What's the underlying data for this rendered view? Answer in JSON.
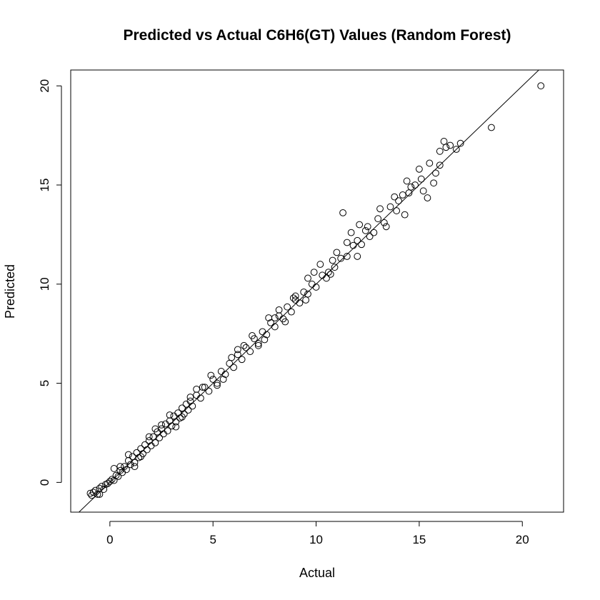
{
  "chart_data": {
    "type": "scatter",
    "title": "Predicted vs Actual C6H6(GT) Values (Random Forest)",
    "xlabel": "Actual",
    "ylabel": "Predicted",
    "xlim": [
      -1.9,
      22.0
    ],
    "ylim": [
      -1.5,
      20.8
    ],
    "xticks": [
      0,
      5,
      10,
      15,
      20
    ],
    "yticks": [
      0,
      5,
      10,
      15,
      20
    ],
    "xtick_labels": [
      "0",
      "5",
      "10",
      "15",
      "20"
    ],
    "ytick_labels": [
      "0",
      "5",
      "10",
      "15",
      "20"
    ],
    "reference_line": {
      "intercept": 0,
      "slope": 1
    },
    "grid": false,
    "legend": "none",
    "marker": "open-circle",
    "colors": {
      "points": "#000000",
      "line": "#000000",
      "background": "#ffffff"
    },
    "series": [
      {
        "points": [
          [
            -0.95,
            -0.55
          ],
          [
            -0.88,
            -0.65
          ],
          [
            -0.8,
            -0.5
          ],
          [
            -0.7,
            -0.4
          ],
          [
            -0.6,
            -0.6
          ],
          [
            -0.5,
            -0.3
          ],
          [
            -0.4,
            -0.2
          ],
          [
            -0.3,
            -0.35
          ],
          [
            -0.2,
            -0.1
          ],
          [
            -0.1,
            -0.05
          ],
          [
            0.0,
            0.05
          ],
          [
            0.1,
            0.15
          ],
          [
            0.2,
            0.1
          ],
          [
            0.3,
            0.35
          ],
          [
            0.4,
            0.3
          ],
          [
            0.5,
            0.6
          ],
          [
            0.6,
            0.5
          ],
          [
            0.7,
            0.8
          ],
          [
            0.8,
            0.65
          ],
          [
            0.9,
            1.1
          ],
          [
            1.0,
            0.9
          ],
          [
            1.1,
            1.3
          ],
          [
            1.2,
            1.0
          ],
          [
            1.3,
            1.5
          ],
          [
            1.4,
            1.25
          ],
          [
            1.5,
            1.7
          ],
          [
            1.6,
            1.45
          ],
          [
            1.7,
            1.9
          ],
          [
            1.8,
            1.65
          ],
          [
            1.9,
            2.1
          ],
          [
            2.0,
            1.85
          ],
          [
            2.1,
            2.3
          ],
          [
            2.2,
            2.0
          ],
          [
            2.3,
            2.55
          ],
          [
            2.4,
            2.25
          ],
          [
            2.5,
            2.7
          ],
          [
            2.6,
            2.45
          ],
          [
            2.7,
            2.95
          ],
          [
            2.8,
            2.6
          ],
          [
            2.9,
            3.1
          ],
          [
            3.0,
            2.85
          ],
          [
            3.1,
            3.35
          ],
          [
            3.2,
            3.05
          ],
          [
            3.3,
            3.5
          ],
          [
            3.4,
            3.25
          ],
          [
            3.5,
            3.75
          ],
          [
            3.6,
            3.45
          ],
          [
            3.7,
            3.95
          ],
          [
            3.8,
            3.65
          ],
          [
            3.9,
            4.1
          ],
          [
            4.0,
            3.85
          ],
          [
            4.2,
            4.4
          ],
          [
            4.4,
            4.25
          ],
          [
            4.6,
            4.8
          ],
          [
            4.8,
            4.6
          ],
          [
            5.0,
            5.2
          ],
          [
            5.2,
            5.0
          ],
          [
            5.4,
            5.6
          ],
          [
            5.6,
            5.45
          ],
          [
            5.8,
            6.0
          ],
          [
            6.0,
            5.8
          ],
          [
            6.2,
            6.45
          ],
          [
            6.4,
            6.2
          ],
          [
            6.6,
            6.8
          ],
          [
            6.8,
            6.6
          ],
          [
            7.0,
            7.25
          ],
          [
            7.2,
            7.0
          ],
          [
            7.4,
            7.6
          ],
          [
            7.6,
            7.45
          ],
          [
            7.8,
            8.05
          ],
          [
            8.0,
            7.85
          ],
          [
            8.2,
            8.4
          ],
          [
            8.4,
            8.25
          ],
          [
            8.6,
            8.85
          ],
          [
            8.8,
            8.6
          ],
          [
            9.0,
            9.2
          ],
          [
            9.2,
            9.05
          ],
          [
            9.4,
            9.6
          ],
          [
            9.6,
            9.5
          ],
          [
            9.8,
            10.0
          ],
          [
            10.0,
            9.85
          ],
          [
            10.3,
            10.45
          ],
          [
            10.6,
            10.6
          ],
          [
            10.9,
            10.85
          ],
          [
            11.2,
            11.3
          ],
          [
            11.5,
            11.4
          ],
          [
            11.8,
            11.95
          ],
          [
            12.0,
            12.2
          ],
          [
            12.2,
            12.0
          ],
          [
            12.5,
            12.9
          ],
          [
            12.8,
            12.6
          ],
          [
            13.0,
            13.3
          ],
          [
            13.3,
            13.1
          ],
          [
            13.6,
            13.9
          ],
          [
            13.9,
            13.7
          ],
          [
            14.2,
            14.5
          ],
          [
            14.5,
            14.6
          ],
          [
            14.8,
            15.0
          ],
          [
            15.1,
            15.3
          ],
          [
            15.4,
            14.35
          ],
          [
            15.8,
            15.6
          ],
          [
            16.0,
            16.0
          ],
          [
            16.3,
            16.9
          ],
          [
            16.5,
            17.0
          ],
          [
            16.8,
            16.8
          ],
          [
            17.0,
            17.1
          ],
          [
            18.5,
            17.9
          ],
          [
            20.9,
            20.0
          ],
          [
            8.0,
            8.3
          ],
          [
            7.5,
            7.2
          ],
          [
            6.5,
            6.9
          ],
          [
            5.5,
            5.2
          ],
          [
            4.5,
            4.8
          ],
          [
            3.5,
            3.3
          ],
          [
            2.5,
            2.9
          ],
          [
            1.5,
            1.3
          ],
          [
            0.5,
            0.8
          ],
          [
            9.0,
            9.4
          ],
          [
            9.5,
            9.2
          ],
          [
            10.5,
            10.3
          ],
          [
            11.0,
            11.6
          ],
          [
            11.5,
            12.1
          ],
          [
            12.0,
            11.4
          ],
          [
            12.4,
            12.7
          ],
          [
            13.1,
            13.8
          ],
          [
            13.4,
            12.9
          ],
          [
            14.0,
            14.2
          ],
          [
            14.4,
            15.2
          ],
          [
            15.0,
            15.8
          ],
          [
            15.7,
            15.1
          ],
          [
            16.2,
            17.2
          ],
          [
            11.3,
            13.6
          ],
          [
            9.6,
            10.3
          ],
          [
            10.2,
            11.0
          ],
          [
            8.5,
            8.1
          ],
          [
            7.7,
            8.3
          ],
          [
            12.6,
            12.4
          ],
          [
            13.8,
            14.4
          ],
          [
            14.6,
            14.9
          ],
          [
            15.5,
            16.1
          ],
          [
            16.0,
            16.7
          ],
          [
            15.2,
            14.7
          ],
          [
            14.3,
            13.5
          ],
          [
            12.1,
            13.0
          ],
          [
            11.7,
            12.6
          ],
          [
            10.8,
            11.2
          ],
          [
            10.7,
            10.5
          ],
          [
            9.9,
            10.6
          ],
          [
            8.9,
            9.3
          ],
          [
            6.9,
            7.4
          ],
          [
            5.9,
            6.3
          ],
          [
            4.9,
            5.4
          ],
          [
            3.9,
            4.3
          ],
          [
            2.9,
            3.4
          ],
          [
            1.9,
            2.3
          ],
          [
            0.9,
            1.4
          ],
          [
            -0.5,
            -0.6
          ],
          [
            0.2,
            0.7
          ],
          [
            1.2,
            0.8
          ],
          [
            2.2,
            2.7
          ],
          [
            3.2,
            2.8
          ],
          [
            4.2,
            4.7
          ],
          [
            5.2,
            4.9
          ],
          [
            6.2,
            6.7
          ],
          [
            7.2,
            6.9
          ],
          [
            8.2,
            8.7
          ]
        ]
      }
    ]
  }
}
